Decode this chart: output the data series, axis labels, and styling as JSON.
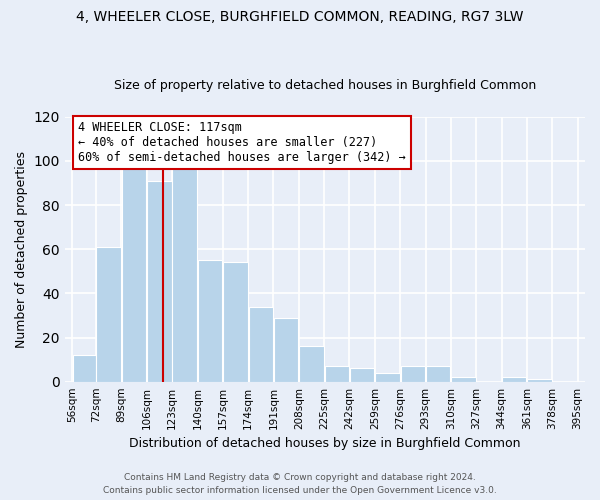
{
  "title": "4, WHEELER CLOSE, BURGHFIELD COMMON, READING, RG7 3LW",
  "subtitle": "Size of property relative to detached houses in Burghfield Common",
  "xlabel": "Distribution of detached houses by size in Burghfield Common",
  "ylabel": "Number of detached properties",
  "bar_edges": [
    56,
    72,
    89,
    106,
    123,
    140,
    157,
    174,
    191,
    208,
    225,
    242,
    259,
    276,
    293,
    310,
    327,
    344,
    361,
    378,
    395
  ],
  "bar_heights": [
    12,
    61,
    100,
    91,
    97,
    55,
    54,
    34,
    29,
    16,
    7,
    6,
    4,
    7,
    7,
    2,
    0,
    2,
    1,
    0
  ],
  "bar_color": "#b8d4ea",
  "vline_x": 117,
  "vline_color": "#cc0000",
  "ylim": [
    0,
    120
  ],
  "yticks": [
    0,
    20,
    40,
    60,
    80,
    100,
    120
  ],
  "tick_labels": [
    "56sqm",
    "72sqm",
    "89sqm",
    "106sqm",
    "123sqm",
    "140sqm",
    "157sqm",
    "174sqm",
    "191sqm",
    "208sqm",
    "225sqm",
    "242sqm",
    "259sqm",
    "276sqm",
    "293sqm",
    "310sqm",
    "327sqm",
    "344sqm",
    "361sqm",
    "378sqm",
    "395sqm"
  ],
  "annotation_title": "4 WHEELER CLOSE: 117sqm",
  "annotation_line1": "← 40% of detached houses are smaller (227)",
  "annotation_line2": "60% of semi-detached houses are larger (342) →",
  "annotation_box_color": "white",
  "annotation_box_edgecolor": "#cc0000",
  "footer1": "Contains HM Land Registry data © Crown copyright and database right 2024.",
  "footer2": "Contains public sector information licensed under the Open Government Licence v3.0.",
  "background_color": "#e8eef8",
  "grid_color": "white",
  "title_fontsize": 10,
  "subtitle_fontsize": 9
}
